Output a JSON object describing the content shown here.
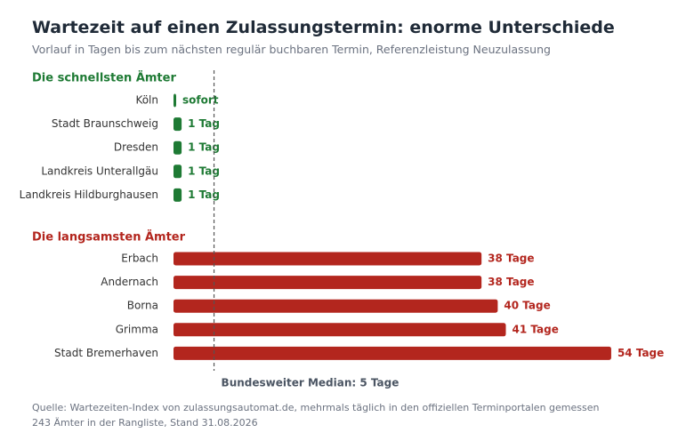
{
  "header": {
    "title": "Wartezeit auf einen Zulassungstermin: enorme Unterschiede",
    "subtitle": "Vorlauf in Tagen bis zum nächsten regulär buchbaren Termin, Referenzleistung Neuzulassung"
  },
  "footer": {
    "source": "Quelle: Wartezeiten-Index von zulassungsautomat.de, mehrmals täglich in den offiziellen Terminportalen gemessen",
    "note": "243 Ämter in der Rangliste, Stand 31.08.2026"
  },
  "colors": {
    "fast": "#1e7a34",
    "slow": "#b3261e",
    "median_line": "#555555",
    "label": "#333333",
    "median_label": "#4b5563"
  },
  "chart_data": {
    "type": "bar",
    "orientation": "horizontal",
    "unit": "Tage",
    "xlim": [
      0,
      54
    ],
    "median": {
      "value": 5,
      "label": "Bundesweiter Median: 5 Tage"
    },
    "groups": [
      {
        "name": "Die schnellsten Ämter",
        "color": "#1e7a34",
        "categories": [
          "Köln",
          "Stadt Braunschweig",
          "Dresden",
          "Landkreis Unterallgäu",
          "Landkreis Hildburghausen"
        ],
        "values": [
          0,
          1,
          1,
          1,
          1
        ],
        "value_labels": [
          "sofort",
          "1 Tag",
          "1 Tag",
          "1 Tag",
          "1 Tag"
        ]
      },
      {
        "name": "Die langsamsten Ämter",
        "color": "#b3261e",
        "categories": [
          "Erbach",
          "Andernach",
          "Borna",
          "Grimma",
          "Stadt Bremerhaven"
        ],
        "values": [
          38,
          38,
          40,
          41,
          54
        ],
        "value_labels": [
          "38 Tage",
          "38 Tage",
          "40 Tage",
          "41 Tage",
          "54 Tage"
        ]
      }
    ]
  }
}
